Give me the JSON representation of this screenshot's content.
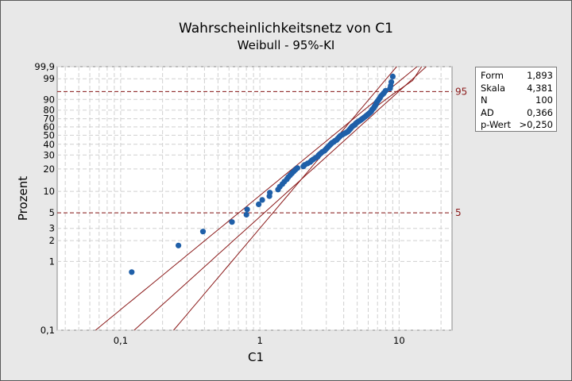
{
  "chart_data": {
    "type": "scatter",
    "title": "Wahrscheinlichkeitsnetz von C1",
    "subtitle": "Weibull - 95%-KI",
    "xlabel": "C1",
    "ylabel": "Prozent",
    "x_scale": "log",
    "y_scale": "weibull-probability",
    "xlim": [
      0.035,
      24
    ],
    "ylim": [
      0.1,
      99.9
    ],
    "x_ticks": [
      0.1,
      1,
      10
    ],
    "x_tick_labels": [
      "0,1",
      "1",
      "10"
    ],
    "y_ticks": [
      0.1,
      1,
      2,
      3,
      5,
      10,
      20,
      30,
      40,
      50,
      60,
      70,
      80,
      90,
      95,
      99,
      99.9
    ],
    "y_tick_labels": [
      "0,1",
      "1",
      "2",
      "3",
      "5",
      "10",
      "20",
      "30",
      "40",
      "50",
      "60",
      "70",
      "80",
      "90",
      "",
      "99",
      "99,9"
    ],
    "grid": true,
    "fit": {
      "shape": 1.893,
      "scale": 4.381,
      "n": 100
    },
    "reference_lines": [
      {
        "percent": 95,
        "label": "95"
      },
      {
        "percent": 5,
        "label": "5"
      }
    ],
    "points": [
      {
        "x": 0.12,
        "y": 0.7
      },
      {
        "x": 0.26,
        "y": 1.7
      },
      {
        "x": 0.39,
        "y": 2.7
      },
      {
        "x": 0.63,
        "y": 3.7
      },
      {
        "x": 0.8,
        "y": 4.7
      },
      {
        "x": 0.81,
        "y": 5.6
      },
      {
        "x": 0.98,
        "y": 6.6
      },
      {
        "x": 1.04,
        "y": 7.6
      },
      {
        "x": 1.17,
        "y": 8.6
      },
      {
        "x": 1.18,
        "y": 9.6
      },
      {
        "x": 1.35,
        "y": 10.6
      },
      {
        "x": 1.39,
        "y": 11.6
      },
      {
        "x": 1.45,
        "y": 12.6
      },
      {
        "x": 1.5,
        "y": 13.6
      },
      {
        "x": 1.56,
        "y": 14.6
      },
      {
        "x": 1.6,
        "y": 15.6
      },
      {
        "x": 1.65,
        "y": 16.6
      },
      {
        "x": 1.7,
        "y": 17.6
      },
      {
        "x": 1.75,
        "y": 18.6
      },
      {
        "x": 1.8,
        "y": 19.6
      },
      {
        "x": 1.86,
        "y": 20.6
      },
      {
        "x": 2.05,
        "y": 21.6
      },
      {
        "x": 2.1,
        "y": 22.6
      },
      {
        "x": 2.2,
        "y": 23.6
      },
      {
        "x": 2.3,
        "y": 24.6
      },
      {
        "x": 2.35,
        "y": 25.6
      },
      {
        "x": 2.42,
        "y": 26.6
      },
      {
        "x": 2.5,
        "y": 27.6
      },
      {
        "x": 2.6,
        "y": 28.6
      },
      {
        "x": 2.63,
        "y": 29.6
      },
      {
        "x": 2.68,
        "y": 30.6
      },
      {
        "x": 2.75,
        "y": 31.6
      },
      {
        "x": 2.8,
        "y": 32.6
      },
      {
        "x": 2.9,
        "y": 33.6
      },
      {
        "x": 2.95,
        "y": 34.6
      },
      {
        "x": 3.0,
        "y": 35.6
      },
      {
        "x": 3.05,
        "y": 36.6
      },
      {
        "x": 3.1,
        "y": 37.6
      },
      {
        "x": 3.15,
        "y": 38.6
      },
      {
        "x": 3.2,
        "y": 39.6
      },
      {
        "x": 3.25,
        "y": 40.6
      },
      {
        "x": 3.3,
        "y": 41.6
      },
      {
        "x": 3.4,
        "y": 42.6
      },
      {
        "x": 3.45,
        "y": 43.6
      },
      {
        "x": 3.55,
        "y": 44.6
      },
      {
        "x": 3.6,
        "y": 45.6
      },
      {
        "x": 3.65,
        "y": 46.6
      },
      {
        "x": 3.7,
        "y": 47.6
      },
      {
        "x": 3.75,
        "y": 48.6
      },
      {
        "x": 3.8,
        "y": 49.6
      },
      {
        "x": 3.9,
        "y": 50.5
      },
      {
        "x": 4.0,
        "y": 51.5
      },
      {
        "x": 4.1,
        "y": 52.5
      },
      {
        "x": 4.2,
        "y": 53.5
      },
      {
        "x": 4.3,
        "y": 54.5
      },
      {
        "x": 4.35,
        "y": 55.5
      },
      {
        "x": 4.4,
        "y": 56.5
      },
      {
        "x": 4.45,
        "y": 57.5
      },
      {
        "x": 4.5,
        "y": 58.5
      },
      {
        "x": 4.55,
        "y": 59.5
      },
      {
        "x": 4.6,
        "y": 60.5
      },
      {
        "x": 4.7,
        "y": 61.5
      },
      {
        "x": 4.8,
        "y": 62.5
      },
      {
        "x": 4.85,
        "y": 63.5
      },
      {
        "x": 4.9,
        "y": 64.5
      },
      {
        "x": 5.0,
        "y": 65.5
      },
      {
        "x": 5.1,
        "y": 66.5
      },
      {
        "x": 5.2,
        "y": 67.5
      },
      {
        "x": 5.3,
        "y": 68.5
      },
      {
        "x": 5.4,
        "y": 69.5
      },
      {
        "x": 5.5,
        "y": 70.5
      },
      {
        "x": 5.6,
        "y": 71.5
      },
      {
        "x": 5.7,
        "y": 72.5
      },
      {
        "x": 5.8,
        "y": 73.5
      },
      {
        "x": 5.9,
        "y": 74.5
      },
      {
        "x": 6.0,
        "y": 75.5
      },
      {
        "x": 6.1,
        "y": 76.5
      },
      {
        "x": 6.2,
        "y": 77.5
      },
      {
        "x": 6.3,
        "y": 78.5
      },
      {
        "x": 6.35,
        "y": 79.5
      },
      {
        "x": 6.4,
        "y": 80.5
      },
      {
        "x": 6.5,
        "y": 81.5
      },
      {
        "x": 6.6,
        "y": 82.5
      },
      {
        "x": 6.65,
        "y": 83.5
      },
      {
        "x": 6.7,
        "y": 84.5
      },
      {
        "x": 6.8,
        "y": 85.5
      },
      {
        "x": 6.85,
        "y": 86.5
      },
      {
        "x": 6.9,
        "y": 87.5
      },
      {
        "x": 7.0,
        "y": 88.5
      },
      {
        "x": 7.1,
        "y": 89.5
      },
      {
        "x": 7.2,
        "y": 90.5
      },
      {
        "x": 7.3,
        "y": 91.4
      },
      {
        "x": 7.4,
        "y": 92.4
      },
      {
        "x": 7.6,
        "y": 93.4
      },
      {
        "x": 7.8,
        "y": 94.4
      },
      {
        "x": 8.0,
        "y": 95.4
      },
      {
        "x": 8.6,
        "y": 96.4
      },
      {
        "x": 8.7,
        "y": 97.4
      },
      {
        "x": 8.8,
        "y": 98.4
      },
      {
        "x": 9.0,
        "y": 99.3
      }
    ],
    "stats": [
      {
        "key": "Form",
        "value": "1,893"
      },
      {
        "key": "Skala",
        "value": "4,381"
      },
      {
        "key": "N",
        "value": "100"
      },
      {
        "key": "AD",
        "value": "0,366"
      },
      {
        "key": "p-Wert",
        "value": ">0,250"
      }
    ],
    "colors": {
      "points": "#1f5fa8",
      "fit_lines": "#8b1a1a",
      "reference": "#8b1a1a",
      "plot_bg": "#ffffff",
      "grid": "#d0d0d0"
    }
  }
}
